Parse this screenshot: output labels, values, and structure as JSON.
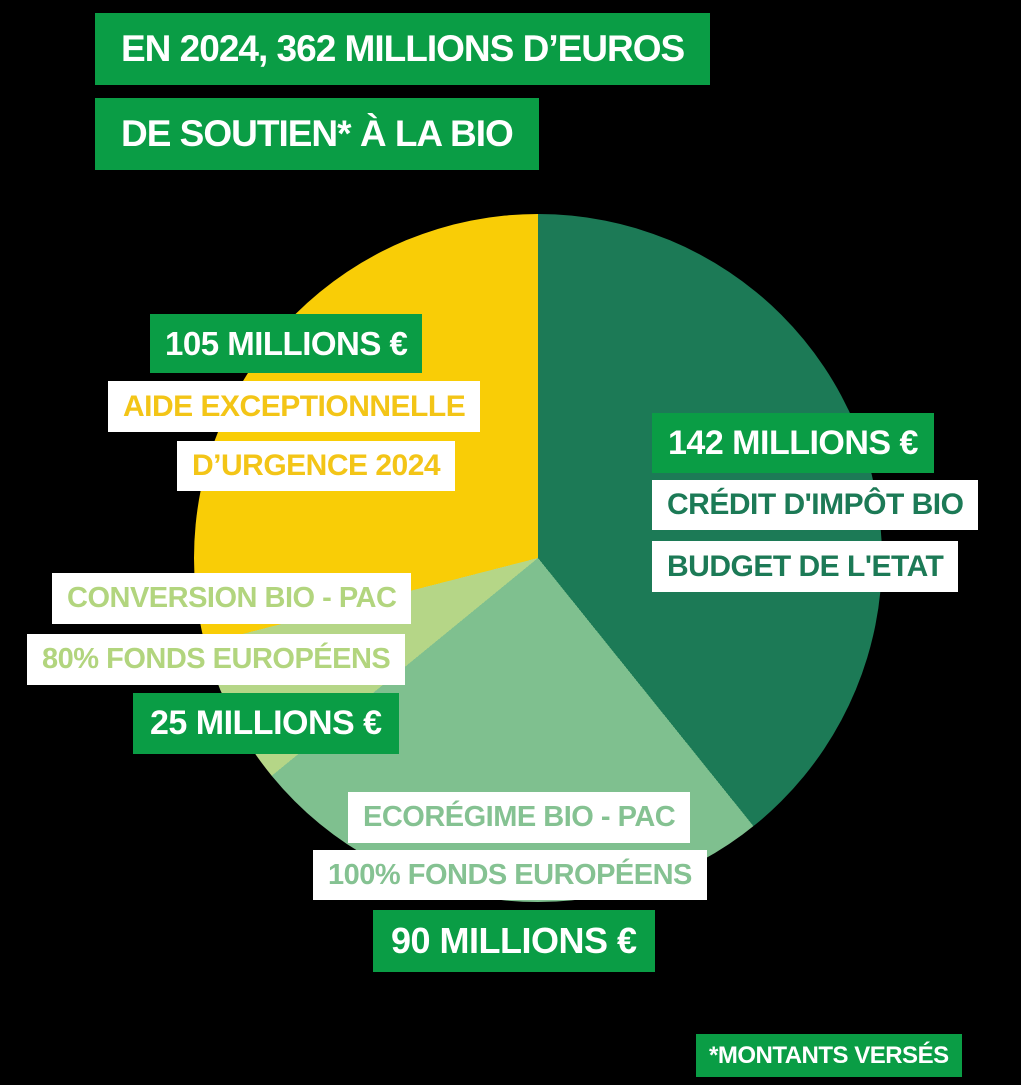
{
  "title": {
    "line1": "EN 2024, 362 MILLIONS D’EUROS",
    "line2": "DE SOUTIEN* À LA BIO"
  },
  "colors": {
    "background": "#000000",
    "badge_green": "#0A9D45",
    "white": "#FFFFFF",
    "dark_green": "#1C7A56",
    "medium_green": "#7FC08F",
    "pale_green": "#B5D687",
    "yellow": "#F9CD06",
    "yellow_text": "#F3C517",
    "medium_green_text": "#85C292",
    "pale_green_text": "#B2D57E"
  },
  "chart_data": {
    "type": "pie",
    "title": "EN 2024, 362 MILLIONS D’EUROS DE SOUTIEN* À LA BIO",
    "total": 362,
    "unit": "MILLIONS €",
    "start_angle_deg": 0,
    "direction": "clockwise",
    "legend_position": "callouts-around-pie",
    "slices": [
      {
        "label": "CRÉDIT D'IMPÔT BIO — BUDGET DE L'ETAT",
        "value": 142,
        "color": "#1C7A56"
      },
      {
        "label": "ECORÉGIME BIO - PAC — 100% FONDS EUROPÉENS",
        "value": 90,
        "color": "#7FC08F"
      },
      {
        "label": "CONVERSION BIO - PAC — 80% FONDS EUROPÉENS",
        "value": 25,
        "color": "#B5D687"
      },
      {
        "label": "AIDE EXCEPTIONNELLE D’URGENCE 2024",
        "value": 105,
        "color": "#F9CD06"
      }
    ]
  },
  "callouts": {
    "aide": {
      "value": "105 MILLIONS €",
      "line1": "AIDE EXCEPTIONNELLE",
      "line2": "D’URGENCE 2024"
    },
    "credit": {
      "value": "142 MILLIONS €",
      "line1": "CRÉDIT D'IMPÔT BIO",
      "line2": "BUDGET DE L'ETAT"
    },
    "conversion": {
      "line1": "CONVERSION BIO - PAC",
      "line2": "80% FONDS EUROPÉENS",
      "value": "25 MILLIONS €"
    },
    "ecoregime": {
      "line1": "ECORÉGIME BIO - PAC",
      "line2": "100% FONDS EUROPÉENS",
      "value": "90 MILLIONS €"
    }
  },
  "footer": {
    "note": "*MONTANTS VERSÉS"
  }
}
